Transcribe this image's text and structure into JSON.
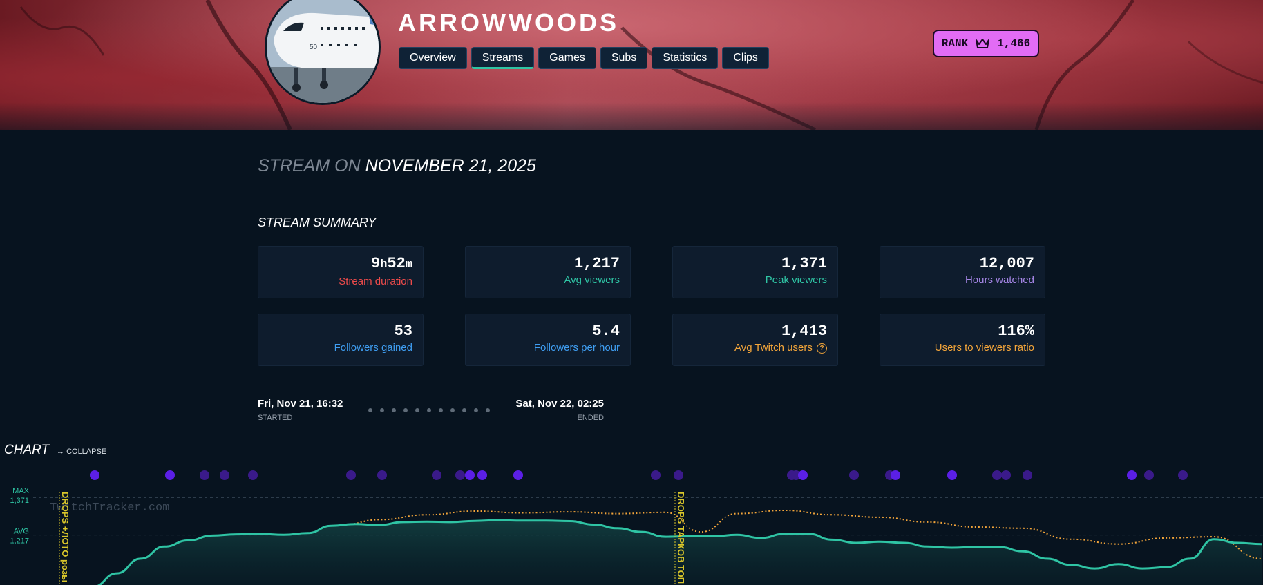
{
  "header": {
    "channel_name": "ARROWWOODS",
    "tabs": [
      {
        "label": "Overview",
        "active": false
      },
      {
        "label": "Streams",
        "active": true
      },
      {
        "label": "Games",
        "active": false
      },
      {
        "label": "Subs",
        "active": false
      },
      {
        "label": "Statistics",
        "active": false
      },
      {
        "label": "Clips",
        "active": false
      }
    ],
    "rank": {
      "label": "RANK",
      "value": "1,466",
      "icon": "crown-icon"
    }
  },
  "stream": {
    "title_prefix": "STREAM ON",
    "title_date": "NOVEMBER 21, 2025"
  },
  "summary": {
    "title": "STREAM SUMMARY",
    "cards": [
      {
        "value_main": "9",
        "unit1": "h",
        "value_2": "52",
        "unit2": "m",
        "label": "Stream duration",
        "color": "#ee4b4b"
      },
      {
        "value": "1,217",
        "label": "Avg viewers",
        "color": "#2fc4a4"
      },
      {
        "value": "1,371",
        "label": "Peak viewers",
        "color": "#2fc4a4"
      },
      {
        "value": "12,007",
        "label": "Hours watched",
        "color": "#a787e8"
      },
      {
        "value": "53",
        "label": "Followers gained",
        "color": "#3f9ef2"
      },
      {
        "value": "5.4",
        "label": "Followers per hour",
        "color": "#3f9ef2"
      },
      {
        "value": "1,413",
        "label": "Avg Twitch users",
        "color": "#f3a53a",
        "icon": "help-icon"
      },
      {
        "value": "116%",
        "label": "Users to viewers ratio",
        "color": "#f3a53a"
      }
    ]
  },
  "timeline": {
    "start_date": "Fri, Nov 21, 16:32",
    "start_label": "STARTED",
    "end_date": "Sat, Nov 22, 02:25",
    "end_label": "ENDED"
  },
  "chart": {
    "title": "CHART",
    "collapse_label": "COLLAPSE",
    "max_label": "MAX",
    "max_value": "1,371",
    "avg_label": "AVG",
    "avg_value": "1,217",
    "watermark": "TwitchTracker.com",
    "annotation_1": "DROPS +ЛОТО розы",
    "annotation_2": "DROPS ТАРКОВ ТОП",
    "colors": {
      "viewers": "#2fc4a4",
      "twitch_users": "#f3a53a",
      "events": "#5b1fe6",
      "annotation": "#d9c62a"
    }
  },
  "chart_data": {
    "type": "line",
    "series": [
      {
        "name": "Viewers",
        "x": [
          0.0,
          0.02,
          0.04,
          0.06,
          0.08,
          0.1,
          0.12,
          0.14,
          0.16,
          0.18,
          0.2,
          0.22,
          0.24,
          0.26,
          0.28,
          0.3,
          0.32,
          0.34,
          0.36,
          0.38,
          0.4,
          0.42,
          0.44,
          0.46,
          0.48,
          0.5,
          0.52,
          0.54,
          0.56,
          0.58,
          0.6,
          0.62,
          0.64,
          0.66,
          0.68,
          0.7,
          0.72,
          0.74,
          0.76,
          0.78,
          0.8,
          0.82,
          0.84,
          0.86,
          0.88,
          0.9,
          0.92,
          0.94,
          0.96,
          0.98,
          1.0
        ],
        "values": [
          980,
          1005,
          1060,
          1120,
          1170,
          1195,
          1215,
          1220,
          1222,
          1218,
          1225,
          1255,
          1262,
          1258,
          1270,
          1272,
          1270,
          1275,
          1278,
          1276,
          1276,
          1274,
          1260,
          1245,
          1230,
          1210,
          1212,
          1212,
          1218,
          1205,
          1222,
          1222,
          1198,
          1185,
          1190,
          1185,
          1170,
          1165,
          1168,
          1168,
          1150,
          1120,
          1095,
          1080,
          1098,
          1080,
          1085,
          1120,
          1200,
          1185,
          1180
        ],
        "extent": "full"
      },
      {
        "name": "Avg Twitch users",
        "x": [
          0.23,
          0.26,
          0.3,
          0.34,
          0.38,
          0.42,
          0.46,
          0.5,
          0.53,
          0.56,
          0.6,
          0.64,
          0.68,
          0.72,
          0.76,
          0.8,
          0.84,
          0.88,
          0.92,
          0.96,
          1.0
        ],
        "values": [
          1260,
          1280,
          1300,
          1315,
          1308,
          1312,
          1305,
          1310,
          1230,
          1305,
          1318,
          1300,
          1290,
          1270,
          1250,
          1245,
          1200,
          1180,
          1205,
          1210,
          1120
        ]
      }
    ],
    "reference_lines": [
      {
        "label": "MAX",
        "value": 1371
      },
      {
        "label": "AVG",
        "value": 1217
      }
    ],
    "ylim": [
      950,
      1400
    ]
  }
}
